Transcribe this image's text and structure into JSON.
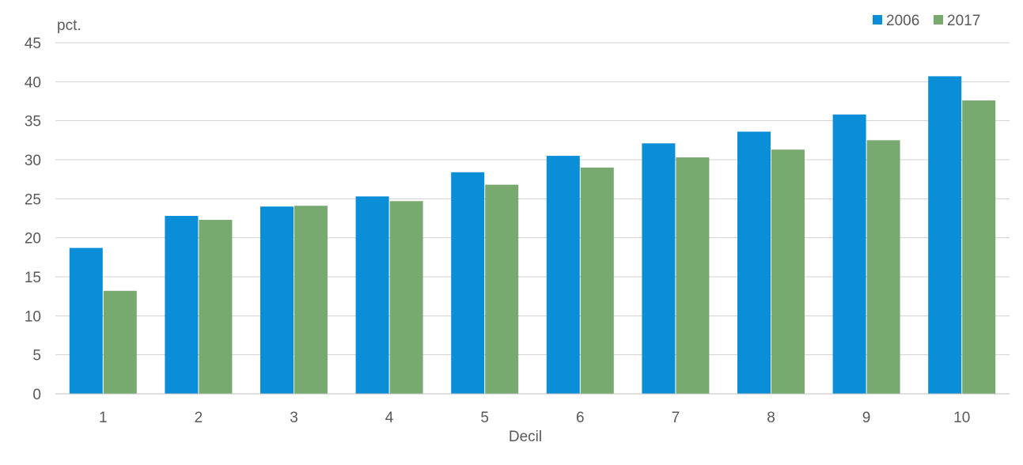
{
  "chart_data": {
    "type": "bar",
    "xlabel": "Decil",
    "ylabel": "pct.",
    "ylim": [
      0,
      45
    ],
    "yticks": [
      0,
      5,
      10,
      15,
      20,
      25,
      30,
      35,
      40,
      45
    ],
    "grid": true,
    "legend_position": "top-right",
    "categories": [
      "1",
      "2",
      "3",
      "4",
      "5",
      "6",
      "7",
      "8",
      "9",
      "10"
    ],
    "series": [
      {
        "name": "2006",
        "color": "#0a8ed8",
        "values": [
          18.7,
          22.8,
          24.0,
          25.3,
          28.4,
          30.5,
          32.1,
          33.6,
          35.8,
          40.7
        ]
      },
      {
        "name": "2017",
        "color": "#78a96f",
        "values": [
          13.2,
          22.3,
          24.1,
          24.7,
          26.8,
          29.0,
          30.3,
          31.3,
          32.5,
          37.6
        ]
      }
    ]
  }
}
